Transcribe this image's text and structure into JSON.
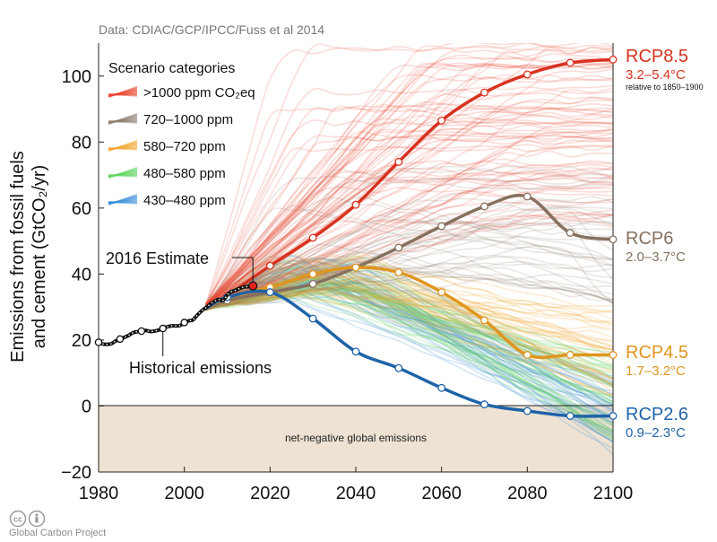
{
  "source": "Data: CDIAC/GCP/IPCC/Fuss et al 2014",
  "credit": "Global Carbon Project",
  "chart_data": {
    "type": "line",
    "ylabel": "Emissions from fossil fuels and cement (GtCO₂/yr)",
    "ylabel_line1": "Emissions from fossil fuels",
    "ylabel_line2": "and cement (GtCO₂/yr)",
    "xlim": [
      1980,
      2100
    ],
    "ylim": [
      -20,
      110
    ],
    "xticks": [
      1980,
      2000,
      2020,
      2040,
      2060,
      2080,
      2100
    ],
    "yticks": [
      -20,
      0,
      20,
      40,
      60,
      80,
      100
    ],
    "negative_region_label": "net-negative global emissions",
    "legend": {
      "title": "Scenario categories",
      "position": "top-left",
      "items": [
        {
          "label": ">1000 ppm CO₂eq",
          "color": "#e8412b"
        },
        {
          "label": "720–1000 ppm",
          "color": "#8c7c6c"
        },
        {
          "label": "580–720 ppm",
          "color": "#f0a830"
        },
        {
          "label": "480–580 ppm",
          "color": "#5fd35f"
        },
        {
          "label": "430–480 ppm",
          "color": "#3a8fd8"
        }
      ]
    },
    "annotations": {
      "estimate_label": "2016 Estimate",
      "historical_label": "Historical emissions"
    },
    "historical": {
      "x": [
        1980,
        1981,
        1982,
        1983,
        1984,
        1985,
        1986,
        1987,
        1988,
        1989,
        1990,
        1991,
        1992,
        1993,
        1994,
        1995,
        1996,
        1997,
        1998,
        1999,
        2000,
        2001,
        2002,
        2003,
        2004,
        2005,
        2006,
        2007,
        2008,
        2009,
        2010,
        2011,
        2012,
        2013,
        2014,
        2015,
        2016
      ],
      "y": [
        19.3,
        18.8,
        18.7,
        18.9,
        19.7,
        20.3,
        20.8,
        21.4,
        22.2,
        22.5,
        22.7,
        22.9,
        22.6,
        22.7,
        23.0,
        23.5,
        24.0,
        24.3,
        24.3,
        24.4,
        25.3,
        25.8,
        26.1,
        27.5,
        28.8,
        29.8,
        30.8,
        31.7,
        32.3,
        32.0,
        33.6,
        34.7,
        35.1,
        35.7,
        36.1,
        36.2,
        36.4
      ]
    },
    "estimate_2016": {
      "x": 2016,
      "y": 36.4
    },
    "series": [
      {
        "name": "RCP8.5",
        "range": "3.2–5.4°C",
        "note": "relative to 1850–1900",
        "color": "#d7321f",
        "x": [
          2005,
          2010,
          2020,
          2030,
          2040,
          2050,
          2060,
          2070,
          2080,
          2090,
          2100
        ],
        "y": [
          29.5,
          33.5,
          42.5,
          51,
          61,
          74,
          86.5,
          95,
          100.5,
          104,
          105
        ]
      },
      {
        "name": "RCP6",
        "range": "2.0–3.7°C",
        "color": "#86705e",
        "x": [
          2005,
          2010,
          2020,
          2030,
          2040,
          2050,
          2060,
          2070,
          2080,
          2090,
          2100
        ],
        "y": [
          29.5,
          32,
          34.5,
          37,
          42,
          48,
          54.5,
          60.5,
          63.5,
          52.5,
          50.5
        ]
      },
      {
        "name": "RCP4.5",
        "range": "1.7–3.2°C",
        "color": "#e0951e",
        "x": [
          2005,
          2010,
          2020,
          2030,
          2040,
          2050,
          2060,
          2070,
          2080,
          2090,
          2100
        ],
        "y": [
          29.5,
          33,
          36,
          40,
          42,
          40.5,
          34.5,
          26,
          15.5,
          15.5,
          15.5
        ]
      },
      {
        "name": "RCP2.6",
        "range": "0.9–2.3°C",
        "color": "#1f63a8",
        "x": [
          2005,
          2010,
          2020,
          2030,
          2040,
          2050,
          2060,
          2070,
          2080,
          2090,
          2100
        ],
        "y": [
          29.5,
          33,
          34.5,
          26.5,
          16.5,
          11.5,
          5.5,
          0.5,
          -1.5,
          -3,
          -3
        ]
      }
    ],
    "grid": false
  }
}
